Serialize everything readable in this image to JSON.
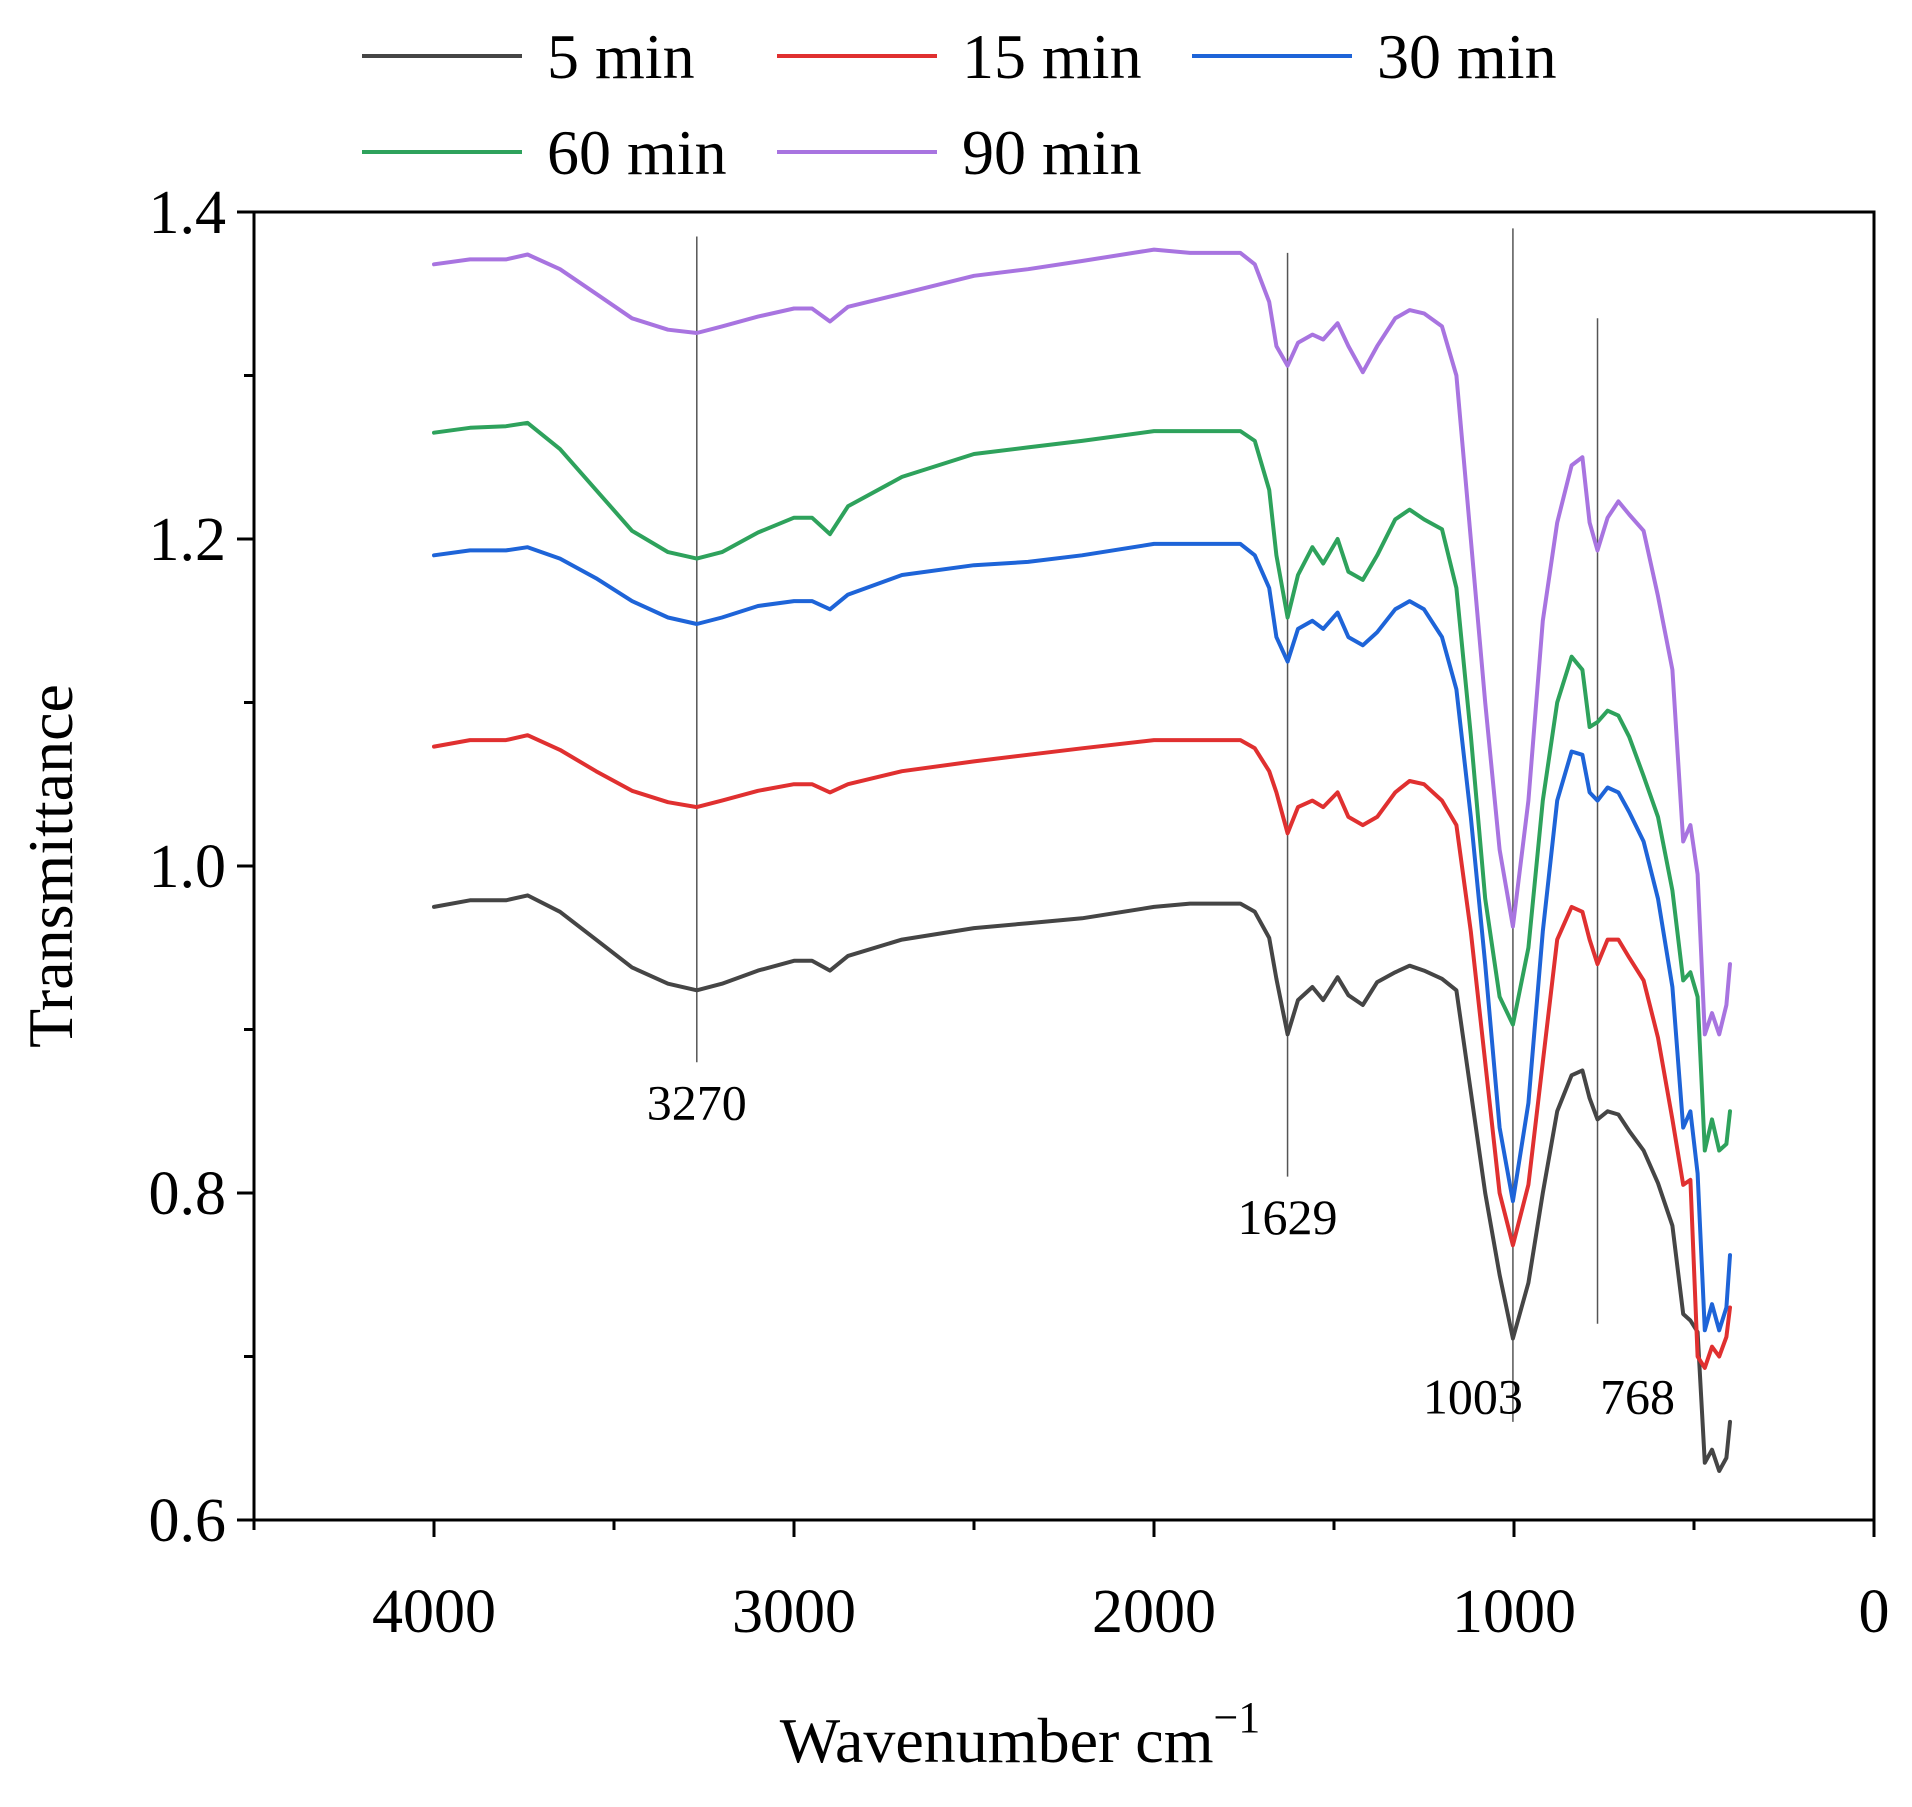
{
  "chart_data": {
    "type": "line",
    "title": "",
    "xlabel": "Wavenumber cm",
    "xlabel_superscript": "−1",
    "ylabel": "Transmittance",
    "xlim": [
      4500,
      0
    ],
    "ylim": [
      0.6,
      1.4
    ],
    "x_ticks": [
      4000,
      3000,
      2000,
      1000,
      0
    ],
    "x_tick_labels": [
      "4000",
      "3000",
      "2000",
      "1000",
      "0"
    ],
    "y_ticks": [
      0.6,
      0.8,
      1.0,
      1.2,
      1.4
    ],
    "y_tick_labels": [
      "0.6",
      "0.8",
      "1.0",
      "1.2",
      "1.4"
    ],
    "legend_position": "top",
    "grid": false,
    "x": [
      4000,
      3900,
      3800,
      3740,
      3650,
      3550,
      3450,
      3350,
      3270,
      3200,
      3100,
      3000,
      2950,
      2900,
      2850,
      2700,
      2500,
      2350,
      2200,
      2000,
      1900,
      1760,
      1720,
      1680,
      1660,
      1629,
      1600,
      1560,
      1530,
      1490,
      1460,
      1420,
      1380,
      1330,
      1290,
      1250,
      1200,
      1160,
      1120,
      1080,
      1040,
      1003,
      960,
      920,
      880,
      840,
      810,
      790,
      768,
      740,
      710,
      680,
      640,
      600,
      560,
      530,
      510,
      490,
      470,
      450,
      430,
      410,
      400
    ],
    "series": [
      {
        "name": "5 min",
        "color": "#454545",
        "values": [
          0.975,
          0.979,
          0.979,
          0.982,
          0.972,
          0.955,
          0.938,
          0.928,
          0.924,
          0.928,
          0.936,
          0.942,
          0.942,
          0.936,
          0.945,
          0.955,
          0.962,
          0.965,
          0.968,
          0.975,
          0.977,
          0.977,
          0.972,
          0.956,
          0.931,
          0.897,
          0.918,
          0.926,
          0.918,
          0.932,
          0.921,
          0.915,
          0.929,
          0.935,
          0.939,
          0.936,
          0.931,
          0.924,
          0.862,
          0.8,
          0.75,
          0.711,
          0.745,
          0.8,
          0.85,
          0.872,
          0.875,
          0.858,
          0.845,
          0.85,
          0.848,
          0.838,
          0.826,
          0.806,
          0.78,
          0.726,
          0.722,
          0.715,
          0.635,
          0.643,
          0.63,
          0.638,
          0.66
        ]
      },
      {
        "name": "15 min",
        "color": "#e03030",
        "values": [
          1.073,
          1.077,
          1.077,
          1.08,
          1.071,
          1.058,
          1.046,
          1.039,
          1.036,
          1.04,
          1.046,
          1.05,
          1.05,
          1.045,
          1.05,
          1.058,
          1.064,
          1.068,
          1.072,
          1.077,
          1.077,
          1.077,
          1.072,
          1.058,
          1.045,
          1.02,
          1.036,
          1.04,
          1.036,
          1.045,
          1.03,
          1.025,
          1.03,
          1.045,
          1.052,
          1.05,
          1.04,
          1.025,
          0.96,
          0.88,
          0.8,
          0.768,
          0.805,
          0.88,
          0.955,
          0.975,
          0.972,
          0.955,
          0.94,
          0.955,
          0.955,
          0.944,
          0.93,
          0.895,
          0.845,
          0.805,
          0.808,
          0.7,
          0.693,
          0.706,
          0.7,
          0.712,
          0.73
        ]
      },
      {
        "name": "30 min",
        "color": "#1e64d8",
        "values": [
          1.19,
          1.193,
          1.193,
          1.195,
          1.188,
          1.176,
          1.162,
          1.152,
          1.148,
          1.152,
          1.159,
          1.162,
          1.162,
          1.157,
          1.166,
          1.178,
          1.184,
          1.186,
          1.19,
          1.197,
          1.197,
          1.197,
          1.19,
          1.17,
          1.14,
          1.125,
          1.145,
          1.15,
          1.145,
          1.155,
          1.14,
          1.135,
          1.143,
          1.157,
          1.162,
          1.157,
          1.14,
          1.108,
          1.03,
          0.94,
          0.84,
          0.795,
          0.855,
          0.96,
          1.04,
          1.07,
          1.068,
          1.045,
          1.04,
          1.048,
          1.045,
          1.033,
          1.015,
          0.98,
          0.926,
          0.84,
          0.85,
          0.812,
          0.716,
          0.732,
          0.716,
          0.73,
          0.762
        ]
      },
      {
        "name": "60 min",
        "color": "#2ea25c",
        "values": [
          1.265,
          1.268,
          1.269,
          1.271,
          1.255,
          1.23,
          1.205,
          1.192,
          1.188,
          1.192,
          1.204,
          1.213,
          1.213,
          1.203,
          1.22,
          1.238,
          1.252,
          1.256,
          1.26,
          1.266,
          1.266,
          1.266,
          1.26,
          1.23,
          1.19,
          1.152,
          1.178,
          1.195,
          1.185,
          1.2,
          1.18,
          1.175,
          1.19,
          1.212,
          1.218,
          1.212,
          1.206,
          1.17,
          1.08,
          0.98,
          0.92,
          0.903,
          0.95,
          1.04,
          1.1,
          1.128,
          1.12,
          1.085,
          1.088,
          1.095,
          1.092,
          1.079,
          1.055,
          1.03,
          0.985,
          0.93,
          0.935,
          0.92,
          0.826,
          0.845,
          0.826,
          0.83,
          0.85
        ]
      },
      {
        "name": "90 min",
        "color": "#a874e0",
        "values": [
          1.368,
          1.371,
          1.371,
          1.374,
          1.365,
          1.35,
          1.335,
          1.328,
          1.326,
          1.33,
          1.336,
          1.341,
          1.341,
          1.333,
          1.342,
          1.35,
          1.361,
          1.365,
          1.37,
          1.377,
          1.375,
          1.375,
          1.368,
          1.345,
          1.318,
          1.306,
          1.32,
          1.325,
          1.322,
          1.332,
          1.318,
          1.302,
          1.318,
          1.335,
          1.34,
          1.338,
          1.33,
          1.3,
          1.2,
          1.1,
          1.01,
          0.963,
          1.04,
          1.15,
          1.21,
          1.245,
          1.25,
          1.21,
          1.193,
          1.213,
          1.223,
          1.215,
          1.205,
          1.165,
          1.12,
          1.015,
          1.025,
          0.995,
          0.897,
          0.91,
          0.897,
          0.915,
          0.94
        ]
      }
    ],
    "annotations": [
      {
        "label": "3270",
        "x": 3270,
        "line_y": [
          0.88,
          1.385
        ],
        "label_y": 0.845
      },
      {
        "label": "1629",
        "x": 1629,
        "line_y": [
          0.81,
          1.375
        ],
        "label_y": 0.775
      },
      {
        "label": "1003",
        "x": 1003,
        "line_y": [
          0.66,
          1.39
        ],
        "label_y": 0.665
      },
      {
        "label": "768",
        "x": 768,
        "line_y": [
          0.72,
          1.335
        ],
        "label_y": 0.665
      }
    ]
  }
}
